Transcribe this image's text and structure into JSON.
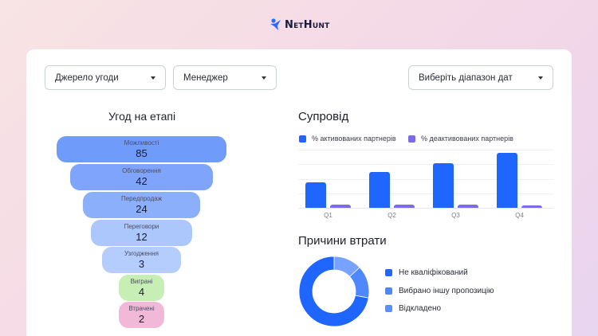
{
  "brand": {
    "name": "NetHunt",
    "logo_color": "#2b6bff"
  },
  "filters": {
    "deal_source": {
      "label": "Джерело угоди"
    },
    "manager": {
      "label": "Менеджер"
    },
    "date_range": {
      "label": "Виберіть діапазон дат"
    }
  },
  "funnel": {
    "title": "Угод на етапі",
    "stages": [
      {
        "label": "Можливості",
        "value": "85",
        "color": "#6f9bfb"
      },
      {
        "label": "Обговорення",
        "value": "42",
        "color": "#7ea5fb"
      },
      {
        "label": "Передпродаж",
        "value": "24",
        "color": "#8caffb"
      },
      {
        "label": "Переговори",
        "value": "12",
        "color": "#abc7fc"
      },
      {
        "label": "Узгодження",
        "value": "3",
        "color": "#b4cdfc"
      },
      {
        "label": "Виграні",
        "value": "4",
        "color": "#c7eeb4"
      },
      {
        "label": "Втрачені",
        "value": "2",
        "color": "#f2b8d8"
      }
    ]
  },
  "support": {
    "title": "Супровід",
    "legend": [
      {
        "label": "% активованих партнерів",
        "color": "#1f66ff"
      },
      {
        "label": "% деактивованих партнерів",
        "color": "#7b6be6"
      }
    ]
  },
  "loss_reasons": {
    "title": "Причини втрати",
    "legend": [
      {
        "label": "Не кваліфікований",
        "color": "#1f66ff"
      },
      {
        "label": "Вибрано іншу пропозицію",
        "color": "#4f87ff"
      },
      {
        "label": "Відкладено",
        "color": "#5b8ffc"
      }
    ]
  },
  "chart_data": [
    {
      "type": "bar",
      "title": "Супровід",
      "categories": [
        "Q1",
        "Q2",
        "Q3",
        "Q4"
      ],
      "series": [
        {
          "name": "% активованих партнерів",
          "values": [
            44,
            61,
            77,
            94
          ],
          "color": "#1f66ff"
        },
        {
          "name": "% деактивованих партнерів",
          "values": [
            5,
            5,
            5,
            4
          ],
          "color": "#7b6be6"
        }
      ],
      "xlabel": "",
      "ylabel": "",
      "ylim": [
        0,
        100
      ],
      "grid": true,
      "legend_position": "top"
    },
    {
      "type": "pie",
      "title": "Причини втрати",
      "donut": true,
      "categories": [
        "Не кваліфікований",
        "Вибрано іншу пропозицію",
        "Відкладено"
      ],
      "values": [
        72,
        15,
        13
      ],
      "colors": [
        "#1f66ff",
        "#4f87ff",
        "#78a2ff"
      ],
      "legend_position": "right"
    }
  ]
}
